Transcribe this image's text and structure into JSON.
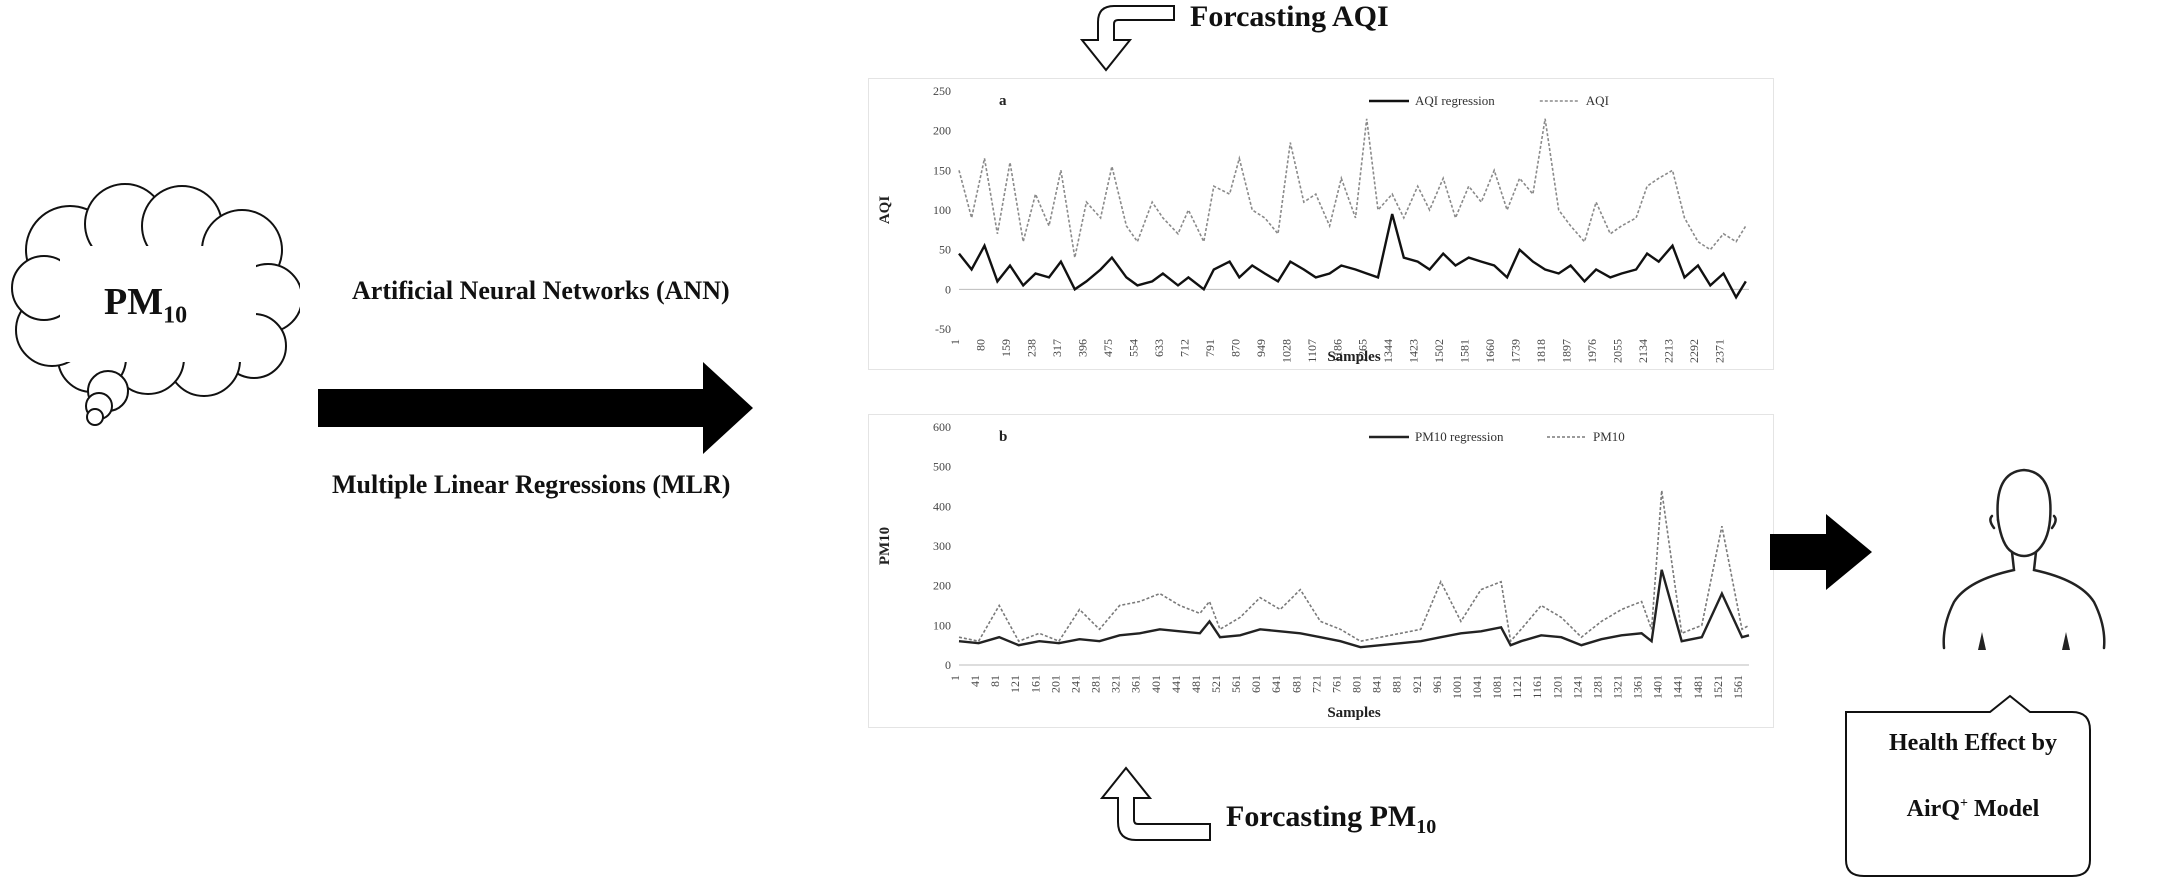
{
  "input_cloud": {
    "label_main": "PM",
    "label_sub": "10"
  },
  "methods": {
    "ann": "Artificial Neural Networks (ANN)",
    "mlr": "Multiple Linear Regressions (MLR)"
  },
  "forecast_aqi": {
    "label": "Forcasting AQI"
  },
  "forecast_pm10": {
    "label_main": "Forcasting PM",
    "label_sub": "10"
  },
  "health": {
    "line1": "Health Effect by",
    "line2_main": "AirQ",
    "line2_sup": "+",
    "line2_rest": " Model"
  },
  "chart_data": [
    {
      "type": "line",
      "panel_label": "a",
      "xlabel": "Samples",
      "ylabel": "AQI",
      "ylim": [
        -50,
        250
      ],
      "yticks": [
        -50,
        0,
        50,
        100,
        150,
        200,
        250
      ],
      "xticks": [
        1,
        80,
        159,
        238,
        317,
        396,
        475,
        554,
        633,
        712,
        791,
        870,
        949,
        1028,
        1107,
        1186,
        1265,
        1344,
        1423,
        1502,
        1581,
        1660,
        1739,
        1818,
        1897,
        1976,
        2055,
        2134,
        2213,
        2292,
        2371
      ],
      "xlim": [
        1,
        2450
      ],
      "legend_position": "top-right",
      "series": [
        {
          "name": "AQI regression",
          "style": "solid",
          "color": "#111111",
          "x": [
            1,
            40,
            80,
            120,
            159,
            200,
            238,
            280,
            317,
            360,
            396,
            440,
            475,
            520,
            554,
            600,
            633,
            680,
            712,
            760,
            791,
            840,
            870,
            910,
            949,
            990,
            1028,
            1070,
            1107,
            1150,
            1186,
            1230,
            1265,
            1300,
            1344,
            1380,
            1423,
            1460,
            1502,
            1540,
            1581,
            1620,
            1660,
            1700,
            1739,
            1780,
            1818,
            1860,
            1897,
            1940,
            1976,
            2020,
            2055,
            2100,
            2134,
            2170,
            2213,
            2250,
            2292,
            2330,
            2371,
            2410,
            2440
          ],
          "y": [
            45,
            25,
            55,
            10,
            30,
            5,
            20,
            15,
            35,
            0,
            10,
            25,
            40,
            15,
            5,
            10,
            20,
            5,
            15,
            0,
            25,
            35,
            15,
            30,
            20,
            10,
            35,
            25,
            15,
            20,
            30,
            25,
            20,
            15,
            95,
            40,
            35,
            25,
            45,
            30,
            40,
            35,
            30,
            15,
            50,
            35,
            25,
            20,
            30,
            10,
            25,
            15,
            20,
            25,
            45,
            35,
            55,
            15,
            30,
            5,
            20,
            -10,
            10
          ]
        },
        {
          "name": "AQI",
          "style": "dashed",
          "color": "#8a8a8a",
          "x": [
            1,
            40,
            80,
            120,
            159,
            200,
            238,
            280,
            317,
            360,
            396,
            440,
            475,
            520,
            554,
            600,
            633,
            680,
            712,
            760,
            791,
            840,
            870,
            910,
            949,
            990,
            1028,
            1070,
            1107,
            1150,
            1186,
            1230,
            1265,
            1300,
            1344,
            1380,
            1423,
            1460,
            1502,
            1540,
            1581,
            1620,
            1660,
            1700,
            1739,
            1780,
            1818,
            1860,
            1897,
            1940,
            1976,
            2020,
            2055,
            2100,
            2134,
            2170,
            2213,
            2250,
            2292,
            2330,
            2371,
            2410,
            2440
          ],
          "y": [
            150,
            90,
            165,
            70,
            160,
            60,
            120,
            80,
            150,
            40,
            110,
            90,
            155,
            80,
            60,
            110,
            90,
            70,
            100,
            60,
            130,
            120,
            165,
            100,
            90,
            70,
            185,
            110,
            120,
            80,
            140,
            90,
            215,
            100,
            120,
            90,
            130,
            100,
            140,
            90,
            130,
            110,
            150,
            100,
            140,
            120,
            215,
            100,
            80,
            60,
            110,
            70,
            80,
            90,
            130,
            140,
            150,
            90,
            60,
            50,
            70,
            60,
            80
          ]
        }
      ]
    },
    {
      "type": "line",
      "panel_label": "b",
      "xlabel": "Samples",
      "ylabel": "PM10",
      "ylim": [
        0,
        600
      ],
      "yticks": [
        0,
        100,
        200,
        300,
        400,
        500,
        600
      ],
      "xticks": [
        1,
        41,
        81,
        121,
        161,
        201,
        241,
        281,
        321,
        361,
        401,
        441,
        481,
        521,
        561,
        601,
        641,
        681,
        721,
        761,
        801,
        841,
        881,
        921,
        961,
        1001,
        1041,
        1081,
        1121,
        1161,
        1201,
        1241,
        1281,
        1321,
        1361,
        1401,
        1441,
        1481,
        1521,
        1561
      ],
      "xlim": [
        1,
        1575
      ],
      "legend_position": "top-right",
      "series": [
        {
          "name": "PM10 regression",
          "style": "solid",
          "color": "#222222",
          "x": [
            1,
            40,
            81,
            120,
            161,
            200,
            241,
            281,
            321,
            361,
            401,
            441,
            481,
            500,
            521,
            561,
            601,
            641,
            681,
            721,
            761,
            801,
            841,
            881,
            921,
            961,
            1001,
            1041,
            1081,
            1100,
            1121,
            1161,
            1201,
            1241,
            1281,
            1321,
            1361,
            1381,
            1401,
            1441,
            1481,
            1521,
            1561,
            1575
          ],
          "y": [
            60,
            55,
            70,
            50,
            60,
            55,
            65,
            60,
            75,
            80,
            90,
            85,
            80,
            110,
            70,
            75,
            90,
            85,
            80,
            70,
            60,
            45,
            50,
            55,
            60,
            70,
            80,
            85,
            95,
            50,
            60,
            75,
            70,
            50,
            65,
            75,
            80,
            60,
            240,
            60,
            70,
            180,
            70,
            75
          ]
        },
        {
          "name": "PM10",
          "style": "dashed",
          "color": "#7a7a7a",
          "x": [
            1,
            40,
            81,
            120,
            161,
            200,
            241,
            281,
            321,
            361,
            401,
            441,
            481,
            500,
            521,
            561,
            601,
            641,
            681,
            721,
            761,
            801,
            841,
            881,
            921,
            961,
            1001,
            1041,
            1081,
            1100,
            1121,
            1161,
            1201,
            1241,
            1281,
            1321,
            1361,
            1381,
            1401,
            1441,
            1481,
            1521,
            1561,
            1575
          ],
          "y": [
            70,
            60,
            150,
            60,
            80,
            60,
            140,
            90,
            150,
            160,
            180,
            150,
            130,
            160,
            90,
            120,
            170,
            140,
            190,
            110,
            90,
            60,
            70,
            80,
            90,
            210,
            110,
            190,
            210,
            60,
            90,
            150,
            120,
            70,
            110,
            140,
            160,
            90,
            440,
            80,
            100,
            350,
            90,
            100
          ]
        }
      ]
    }
  ]
}
